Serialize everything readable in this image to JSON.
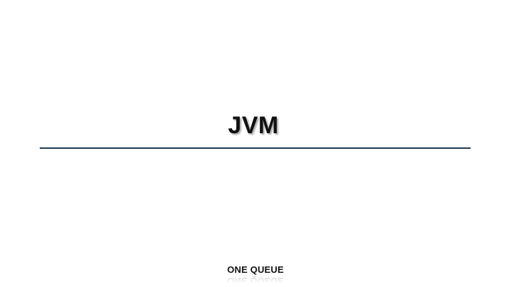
{
  "slide": {
    "title": "JVM",
    "footer": "ONE QUEUE"
  },
  "colors": {
    "background": "#ffffff",
    "text": "#111111",
    "divider": "#1f3a52"
  }
}
